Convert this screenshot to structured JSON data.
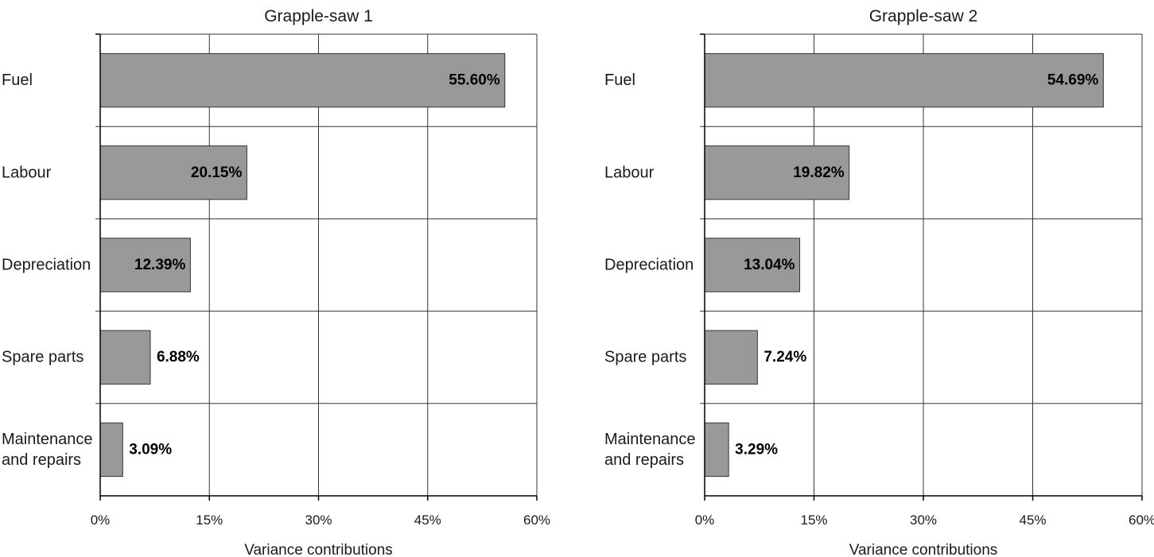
{
  "chart_data": [
    {
      "type": "bar",
      "orientation": "horizontal",
      "title": "Grapple-saw 1",
      "xlabel": "Variance contributions",
      "ylabel": "",
      "categories": [
        "Fuel",
        "Labour",
        "Depreciation",
        "Spare parts",
        "Maintenance and repairs"
      ],
      "category_lines": [
        [
          "Fuel"
        ],
        [
          "Labour"
        ],
        [
          "Depreciation"
        ],
        [
          "Spare parts"
        ],
        [
          "Maintenance",
          "and repairs"
        ]
      ],
      "values": [
        55.6,
        20.15,
        12.39,
        6.88,
        3.09
      ],
      "data_labels": [
        "55.60%",
        "20.15%",
        "12.39%",
        "6.88%",
        "3.09%"
      ],
      "xlim": [
        0,
        60
      ],
      "xticks": [
        0,
        15,
        30,
        45,
        60
      ],
      "xtick_labels": [
        "0%",
        "15%",
        "30%",
        "45%",
        "60%"
      ],
      "grid": true,
      "bar_color": "#999999"
    },
    {
      "type": "bar",
      "orientation": "horizontal",
      "title": "Grapple-saw 2",
      "xlabel": "Variance contributions",
      "ylabel": "",
      "categories": [
        "Fuel",
        "Labour",
        "Depreciation",
        "Spare parts",
        "Maintenance and repairs"
      ],
      "category_lines": [
        [
          "Fuel"
        ],
        [
          "Labour"
        ],
        [
          "Depreciation"
        ],
        [
          "Spare parts"
        ],
        [
          "Maintenance",
          "and repairs"
        ]
      ],
      "values": [
        54.69,
        19.82,
        13.04,
        7.24,
        3.29
      ],
      "data_labels": [
        "54.69%",
        "19.82%",
        "13.04%",
        "7.24%",
        "3.29%"
      ],
      "xlim": [
        0,
        60
      ],
      "xticks": [
        0,
        15,
        30,
        45,
        60
      ],
      "xtick_labels": [
        "0%",
        "15%",
        "30%",
        "45%",
        "60%"
      ],
      "grid": true,
      "bar_color": "#999999"
    }
  ]
}
